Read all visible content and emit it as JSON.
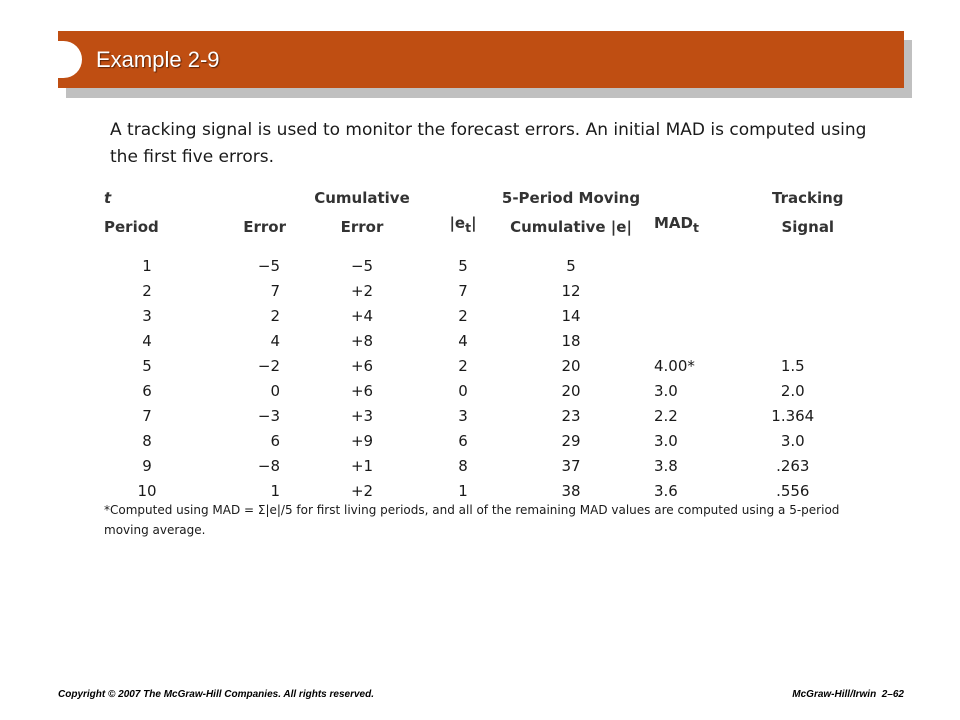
{
  "title": "Example 2-9",
  "intro": "A tracking signal is used to monitor the forecast errors. An initial MAD is computed using the first five errors.",
  "table": {
    "headers_top": [
      "t",
      "",
      "Cumulative",
      "",
      "5-Period Moving",
      "",
      "Tracking"
    ],
    "headers_bottom": [
      "Period",
      "Error",
      "Error",
      "|e",
      "Cumulative |e|",
      "MAD",
      "Signal"
    ],
    "header_subscript": "t",
    "rows": [
      [
        "1",
        "−5",
        "−5",
        "5",
        "5",
        "",
        ""
      ],
      [
        "2",
        "7",
        "+2",
        "7",
        "12",
        "",
        ""
      ],
      [
        "3",
        "2",
        "+4",
        "2",
        "14",
        "",
        ""
      ],
      [
        "4",
        "4",
        "+8",
        "4",
        "18",
        "",
        ""
      ],
      [
        "5",
        "−2",
        "+6",
        "2",
        "20",
        "4.00*",
        "1.5"
      ],
      [
        "6",
        "0",
        "+6",
        "0",
        "20",
        "3.0",
        "2.0"
      ],
      [
        "7",
        "−3",
        "+3",
        "3",
        "23",
        "2.2",
        "1.364"
      ],
      [
        "8",
        "6",
        "+9",
        "6",
        "29",
        "3.0",
        "3.0"
      ],
      [
        "9",
        "−8",
        "+1",
        "8",
        "37",
        "3.8",
        ".263"
      ],
      [
        "10",
        "1",
        "+2",
        "1",
        "38",
        "3.6",
        ".556"
      ]
    ]
  },
  "footnote": "*Computed using MAD = Σ|e|/5 for first living periods, and all of the remaining MAD values are computed using a 5-period moving average.",
  "footer": {
    "copyright": "Copyright © 2007 The McGraw-Hill Companies. All rights reserved.",
    "publisher": "McGraw-Hill/Irwin",
    "page": "2–62"
  },
  "colors": {
    "banner": "#bf4e12",
    "banner_shadow": "#c0c0c0"
  }
}
